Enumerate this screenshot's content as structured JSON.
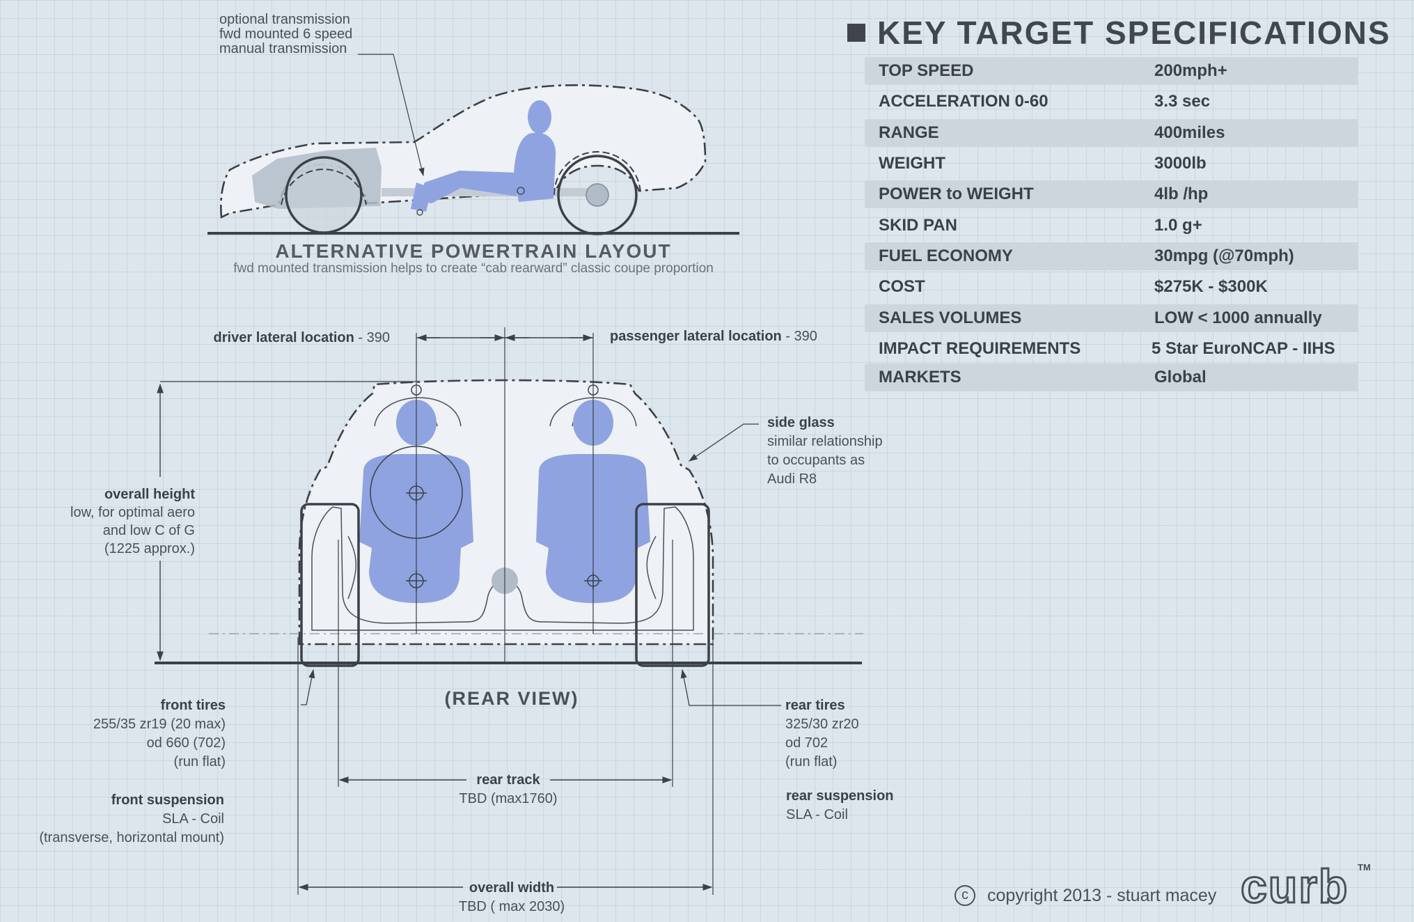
{
  "specs": {
    "title": "KEY TARGET SPECIFICATIONS",
    "rows": [
      {
        "label": "TOP SPEED",
        "value": "200mph+"
      },
      {
        "label": "ACCELERATION  0-60",
        "value": "3.3 sec"
      },
      {
        "label": "RANGE",
        "value": "400miles"
      },
      {
        "label": "WEIGHT",
        "value": "3000lb"
      },
      {
        "label": "POWER to WEIGHT",
        "value": "4lb /hp"
      },
      {
        "label": "SKID PAN",
        "value": "1.0 g+"
      },
      {
        "label": "FUEL ECONOMY",
        "value": "30mpg (@70mph)"
      },
      {
        "label": "COST",
        "value": "$275K - $300K"
      },
      {
        "label": "SALES VOLUMES",
        "value": "LOW   < 1000 annually"
      },
      {
        "label": "IMPACT REQUIREMENTS",
        "value": "5 Star EuroNCAP - IIHS"
      },
      {
        "label": "MARKETS",
        "value": "Global"
      }
    ]
  },
  "side_view": {
    "transmission_note": [
      "optional transmission",
      "fwd mounted 6 speed",
      "manual transmission"
    ],
    "caption_title": "ALTERNATIVE POWERTRAIN LAYOUT",
    "caption_sub": "fwd mounted transmission helps to create “cab rearward” classic coupe proportion"
  },
  "rear_view": {
    "label": "(REAR VIEW)",
    "driver_lateral": {
      "name": "driver lateral location",
      "value": " - 390"
    },
    "passenger_lateral": {
      "name": "passenger lateral location",
      "value": " - 390"
    },
    "overall_height": {
      "title": "overall height",
      "lines": [
        "low, for optimal aero",
        "and low C of G",
        "(1225 approx.)"
      ]
    },
    "side_glass": {
      "title": "side glass",
      "lines": [
        "similar relationship",
        "to occupants as",
        "Audi R8"
      ]
    },
    "front_tires": {
      "title": "front tires",
      "lines": [
        "255/35 zr19 (20 max)",
        "od   660 (702)",
        "(run flat)"
      ]
    },
    "rear_tires": {
      "title": "rear tires",
      "lines": [
        "325/30 zr20",
        "od   702",
        "(run flat)"
      ]
    },
    "rear_track": {
      "title": "rear track",
      "value": "TBD (max1760)"
    },
    "front_suspension": {
      "title": "front suspension",
      "lines": [
        "SLA - Coil",
        "(transverse, horizontal mount)"
      ]
    },
    "rear_suspension": {
      "title": "rear suspension",
      "lines": [
        "SLA - Coil"
      ]
    },
    "overall_width": {
      "title": "overall width",
      "value": "TBD ( max 2030)"
    }
  },
  "footer": {
    "copyright_symbol": "c",
    "copyright": "copyright 2013  - stuart macey",
    "logo": "curb",
    "tm": "TM"
  },
  "colors": {
    "background": "#dde6ec",
    "occupant_fill": "#8fa3e0",
    "line": "#3b4147",
    "row_shade": "#cdd6dd"
  }
}
